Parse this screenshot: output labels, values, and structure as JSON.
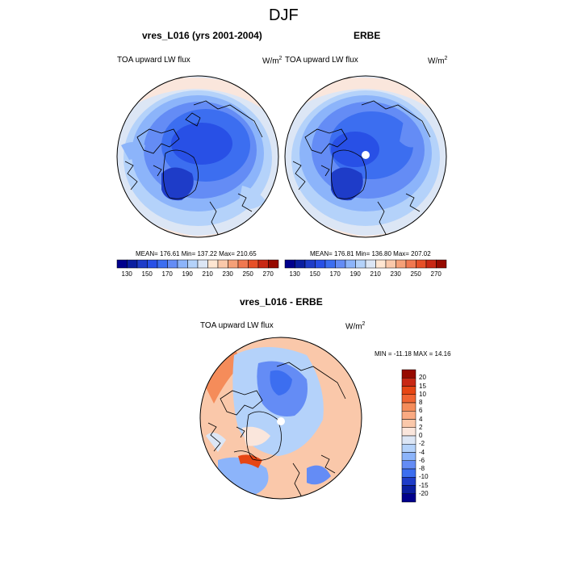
{
  "main_title": "DJF",
  "panels": [
    {
      "title": "vres_L016 (yrs 2001-2004)",
      "variable": "TOA upward LW flux",
      "units_base": "W/m",
      "units_exp": "2",
      "stats": "MEAN= 176.61  Min= 137.22  Max= 210.65"
    },
    {
      "title": "ERBE",
      "variable": "TOA upward LW flux",
      "units_base": "W/m",
      "units_exp": "2",
      "stats": "MEAN= 176.81  Min= 136.80  Max= 207.02"
    },
    {
      "title": "vres_L016 - ERBE",
      "variable": "TOA upward LW flux",
      "units_base": "W/m",
      "units_exp": "2",
      "stats": "MIN = -11.18 MAX =  14.16"
    }
  ],
  "colorbar_abs": {
    "labels": [
      "130",
      "150",
      "170",
      "190",
      "210",
      "230",
      "250",
      "270"
    ],
    "colors": [
      "#00008c",
      "#0a1ea0",
      "#1e3cc8",
      "#2850e6",
      "#3c6ef0",
      "#648cf5",
      "#8cb4fa",
      "#b4d2fa",
      "#dce6f5",
      "#ffe6d2",
      "#fac8aa",
      "#f5a078",
      "#f07850",
      "#e65028",
      "#c82814",
      "#960a00"
    ]
  },
  "colorbar_diff": {
    "labels": [
      "20",
      "15",
      "10",
      "8",
      "6",
      "4",
      "2",
      "0",
      "-2",
      "-4",
      "-6",
      "-8",
      "-10",
      "-15",
      "-20"
    ],
    "colors": [
      "#960a00",
      "#c82814",
      "#e64614",
      "#f06432",
      "#f58c5a",
      "#faaa82",
      "#fac8aa",
      "#fae6dc",
      "#dce6f5",
      "#b4d2fa",
      "#8cb4fa",
      "#648cf5",
      "#3c6ef0",
      "#1e3cc8",
      "#0a1ea0",
      "#00008c"
    ]
  }
}
